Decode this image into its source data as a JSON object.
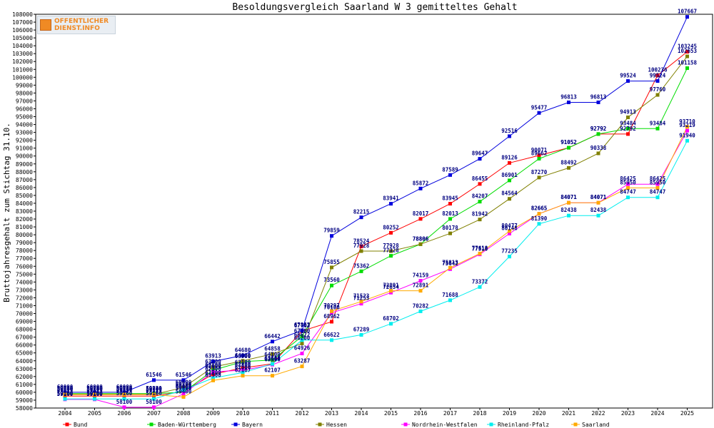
{
  "logo": {
    "line1": "OFFENTLICHER",
    "line2": "DIENST.INFO"
  },
  "chart_data": {
    "type": "line",
    "title": "Besoldungsvergleich Saarland W 3 gemitteltes Gehalt",
    "xlabel": "",
    "ylabel": "Bruttojahresgehalt zum Stichtag 31.10.",
    "ylim": [
      58000,
      108000
    ],
    "ytick_step": 1000,
    "grid": false,
    "legend_position": "bottom",
    "x": [
      "2004",
      "2005",
      "2006",
      "2007",
      "2008",
      "2009",
      "2010",
      "2011",
      "2012",
      "2013",
      "2014",
      "2015",
      "2016",
      "2017",
      "2018",
      "2019",
      "2020",
      "2021",
      "2022",
      "2023",
      "2024",
      "2025"
    ],
    "series": [
      {
        "name": "Bund",
        "color": "#ff0000",
        "values": [
          59525,
          59525,
          59525,
          59525,
          60100,
          62300,
          63100,
          63614,
          67782,
          68962,
          78524,
          80252,
          82017,
          83945,
          86455,
          89126,
          90071,
          91052,
          92792,
          92792,
          100236,
          103245
        ]
      },
      {
        "name": "Baden-Württemberg",
        "color": "#00dd00",
        "values": [
          59830,
          59830,
          59830,
          59830,
          60000,
          62800,
          63900,
          64100,
          67100,
          73560,
          75362,
          77328,
          78806,
          82013,
          84207,
          86901,
          89662,
          91052,
          92792,
          93484,
          93484,
          101158
        ]
      },
      {
        "name": "Bayern",
        "color": "#0000dd",
        "values": [
          60000,
          60000,
          60000,
          61546,
          61546,
          63913,
          64680,
          66442,
          67863,
          79859,
          82215,
          83941,
          85872,
          87589,
          89647,
          92516,
          95477,
          96813,
          96813,
          99524,
          99524,
          107667
        ]
      },
      {
        "name": "Hessen",
        "color": "#808000",
        "values": [
          59740,
          59740,
          59740,
          59740,
          60600,
          63200,
          64000,
          64858,
          66200,
          75855,
          77928,
          77928,
          78806,
          80178,
          81942,
          84564,
          87270,
          88492,
          90338,
          94913,
          97760,
          102653
        ]
      },
      {
        "name": "Nordrhein-Westfalen",
        "color": "#ff00ff",
        "values": [
          59100,
          59100,
          58100,
          58100,
          59800,
          62600,
          62800,
          63500,
          64926,
          70100,
          71253,
          72654,
          74159,
          75642,
          77510,
          80148,
          82665,
          84071,
          84071,
          86425,
          86425,
          93219
        ]
      },
      {
        "name": "Rheinland-Pfalz",
        "color": "#00eeee",
        "values": [
          59160,
          59160,
          59160,
          59160,
          60300,
          61800,
          62500,
          63600,
          66622,
          66622,
          67289,
          68702,
          70282,
          71688,
          73372,
          77235,
          81390,
          82438,
          82438,
          84747,
          84747,
          91940
        ]
      },
      {
        "name": "Saarland",
        "color": "#ffaa00",
        "values": [
          59700,
          59700,
          59700,
          59700,
          59400,
          61500,
          62107,
          62107,
          63287,
          70297,
          71523,
          72891,
          72891,
          75813,
          77618,
          80477,
          82665,
          84071,
          84071,
          85950,
          85950,
          93710
        ]
      }
    ]
  }
}
